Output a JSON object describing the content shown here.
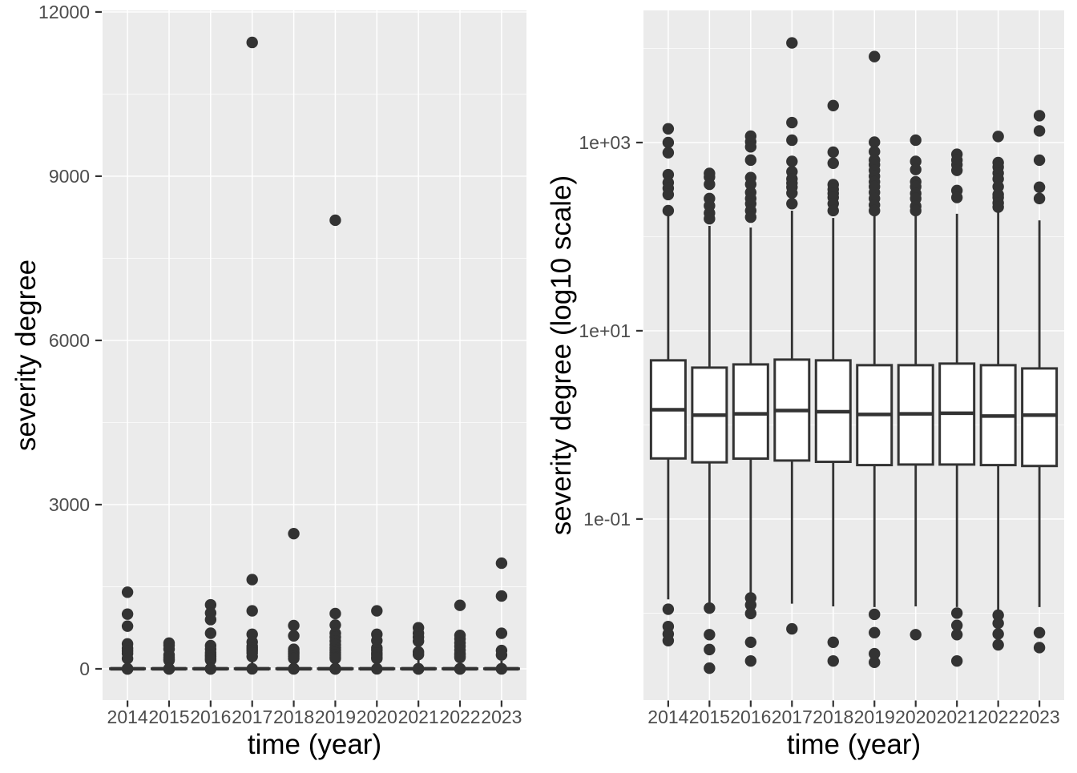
{
  "figure": {
    "kind": "side-by-side ggplot boxplots",
    "background": "#ffffff"
  },
  "style": {
    "panel_bg": "#ebebeb",
    "grid_color": "#ffffff",
    "box_stroke": "#333333",
    "box_fill": "#ffffff",
    "dot_color": "#333333",
    "tick_mark_color": "#333333",
    "tick_label_color": "#4d4d4d",
    "title_color": "#000000",
    "tick_label_size": 23,
    "title_size": 35
  },
  "chart_data": {
    "type": "boxplot",
    "categories": [
      "2014",
      "2015",
      "2016",
      "2017",
      "2018",
      "2019",
      "2020",
      "2021",
      "2022",
      "2023"
    ],
    "xlabel": "time (year)",
    "legend": "none",
    "grid": "on",
    "panels": [
      {
        "id": "linear-panel",
        "ylabel": "severity degree",
        "xlabel": "time (year)",
        "yscale": "linear",
        "ylim": [
          -571,
          12028
        ],
        "yticks": [
          0,
          3000,
          6000,
          9000,
          12000
        ],
        "ytick_labels": [
          "0",
          "3000",
          "6000",
          "9000",
          "12000"
        ],
        "minor_yticks": [
          1500,
          4500,
          7500,
          10500
        ]
      },
      {
        "id": "log-panel",
        "ylabel": "severity degree (log10 scale)",
        "xlabel": "time (year)",
        "yscale": "log10",
        "ylim": [
          0.00119,
          25350
        ],
        "yticks": [
          1000,
          10,
          0.1
        ],
        "ytick_labels": [
          "1e+03",
          "1e+01",
          "1e-01"
        ],
        "minor_yticks": [
          10000,
          100,
          1,
          0.01
        ]
      }
    ],
    "series": [
      {
        "category": "2014",
        "box": {
          "whisker_low": 0.014,
          "q1": 0.44,
          "median": 1.45,
          "q3": 4.85,
          "whisker_high": 171
        },
        "outliers": [
          1400,
          1000,
          780,
          456,
          375,
          327,
          280,
          189,
          0.011,
          0.0072,
          0.006,
          0.0051
        ]
      },
      {
        "category": "2015",
        "box": {
          "whisker_low": 0.0118,
          "q1": 0.4,
          "median": 1.27,
          "q3": 4.06,
          "whisker_high": 130
        },
        "outliers": [
          470,
          430,
          360,
          254,
          213,
          178,
          155,
          0.0113,
          0.0059,
          0.0041,
          0.0026
        ]
      },
      {
        "category": "2016",
        "box": {
          "whisker_low": 0.0155,
          "q1": 0.438,
          "median": 1.31,
          "q3": 4.39,
          "whisker_high": 125
        },
        "outliers": [
          1170,
          1020,
          900,
          651,
          424,
          360,
          295,
          254,
          224,
          189,
          161,
          0.0145,
          0.0122,
          0.0099,
          0.0049,
          0.0031
        ]
      },
      {
        "category": "2017",
        "box": {
          "whisker_low": 0.0126,
          "q1": 0.418,
          "median": 1.42,
          "q3": 4.94,
          "whisker_high": 189
        },
        "outliers": [
          11443,
          1630,
          1060,
          631,
          490,
          411,
          370,
          335,
          291,
          224,
          0.0068
        ]
      },
      {
        "category": "2018",
        "box": {
          "whisker_low": 0.0118,
          "q1": 0.405,
          "median": 1.38,
          "q3": 4.85,
          "whisker_high": 158
        },
        "outliers": [
          2470,
          791,
          603,
          357,
          318,
          288,
          261,
          224,
          189,
          0.0049,
          0.0031
        ]
      },
      {
        "category": "2019",
        "box": {
          "whisker_low": 0.0116,
          "q1": 0.374,
          "median": 1.29,
          "q3": 4.31,
          "whisker_high": 175
        },
        "outliers": [
          8195,
          1010,
          800,
          651,
          580,
          506,
          439,
          383,
          340,
          295,
          254,
          217,
          189,
          0.0097,
          0.0062,
          0.0037,
          0.003
        ]
      },
      {
        "category": "2020",
        "box": {
          "whisker_low": 0.0118,
          "q1": 0.379,
          "median": 1.31,
          "q3": 4.31,
          "whisker_high": 165
        },
        "outliers": [
          1060,
          631,
          516,
          383,
          340,
          288,
          254,
          211,
          189,
          0.0059
        ]
      },
      {
        "category": "2021",
        "box": {
          "whisker_low": 0.0116,
          "q1": 0.379,
          "median": 1.33,
          "q3": 4.48,
          "whisker_high": 175
        },
        "outliers": [
          750,
          651,
          580,
          506,
          309,
          261,
          0.01,
          0.0074,
          0.0059,
          0.0031
        ]
      },
      {
        "category": "2022",
        "box": {
          "whisker_low": 0.01,
          "q1": 0.374,
          "median": 1.24,
          "q3": 4.31,
          "whisker_high": 182
        },
        "outliers": [
          1160,
          612,
          548,
          473,
          411,
          340,
          280,
          261,
          228,
          206,
          0.0095,
          0.0078,
          0.006,
          0.0046
        ]
      },
      {
        "category": "2023",
        "box": {
          "whisker_low": 0.0116,
          "q1": 0.366,
          "median": 1.27,
          "q3": 3.98,
          "whisker_high": 149
        },
        "outliers": [
          1930,
          1330,
          650,
          335,
          254,
          0.0062,
          0.0043
        ]
      }
    ]
  }
}
